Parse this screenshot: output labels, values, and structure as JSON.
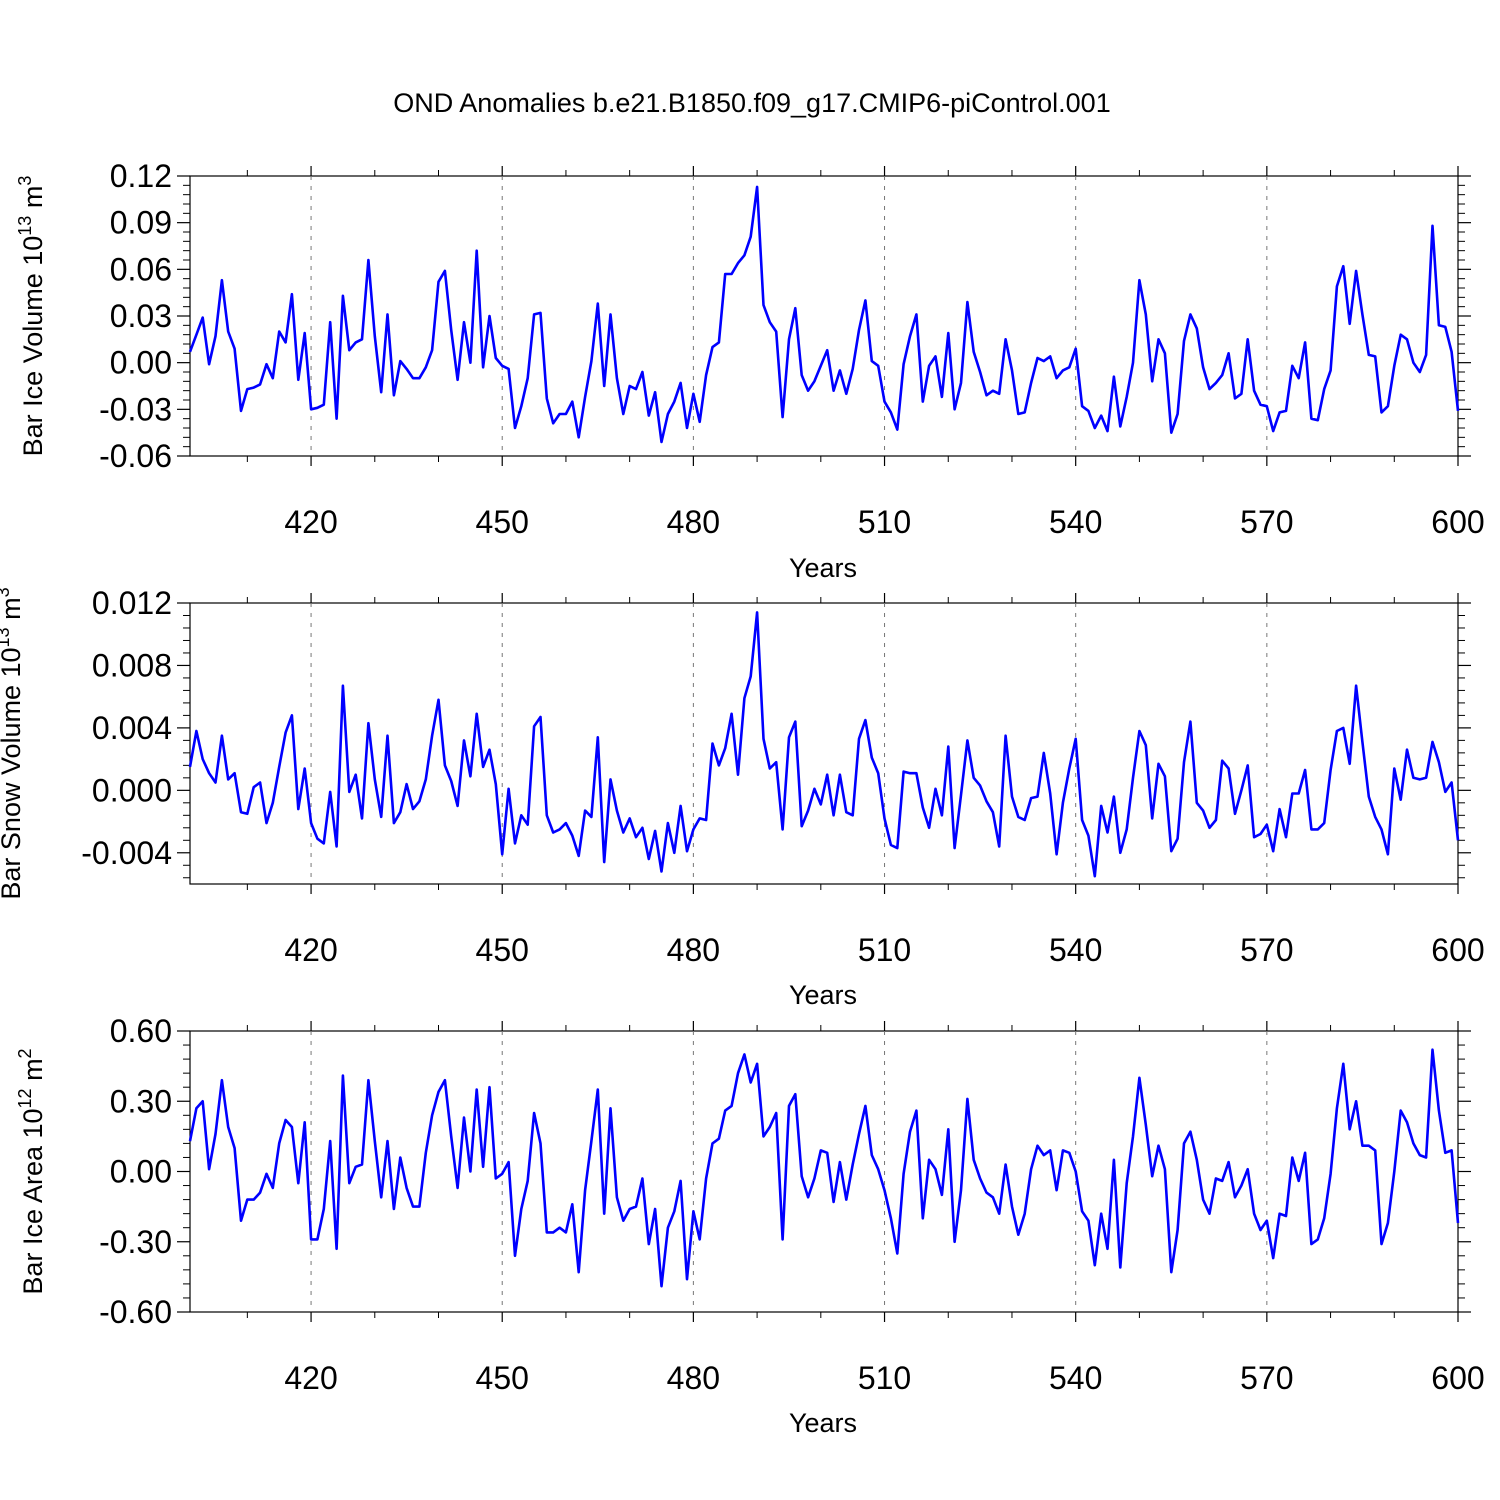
{
  "title": "OND Anomalies b.e21.B1850.f09_g17.CMIP6-piControl.001",
  "line_color": "#0000ff",
  "chart_data": [
    {
      "type": "line",
      "ylabel_main": "Bar Ice Volume 10",
      "ylabel_exp": "13",
      "ylabel_unit": " m",
      "ylabel_unit_exp": "3",
      "xlabel": "Years",
      "xlim": [
        401,
        600
      ],
      "ylim": [
        -0.06,
        0.12
      ],
      "x_ticks": [
        420,
        450,
        480,
        510,
        540,
        570,
        600
      ],
      "y_ticks": [
        -0.06,
        -0.03,
        0.0,
        0.03,
        0.06,
        0.09,
        0.12
      ],
      "y_tick_labels": [
        "-0.06",
        "-0.03",
        "0.00",
        "0.03",
        "0.06",
        "0.09",
        "0.12"
      ],
      "series": [
        {
          "start_year": 401,
          "values": [
            0.007,
            0.018,
            0.029,
            -0.001,
            0.017,
            0.053,
            0.02,
            0.009,
            -0.031,
            -0.017,
            -0.016,
            -0.014,
            -0.001,
            -0.01,
            0.02,
            0.013,
            0.044,
            -0.011,
            0.019,
            -0.03,
            -0.029,
            -0.027,
            0.026,
            -0.036,
            0.043,
            0.008,
            0.013,
            0.015,
            0.066,
            0.017,
            -0.019,
            0.031,
            -0.021,
            0.001,
            -0.004,
            -0.01,
            -0.01,
            -0.003,
            0.008,
            0.052,
            0.059,
            0.021,
            -0.011,
            0.026,
            0.0,
            0.072,
            -0.003,
            0.03,
            0.003,
            -0.002,
            -0.004,
            -0.042,
            -0.028,
            -0.01,
            0.031,
            0.032,
            -0.023,
            -0.039,
            -0.033,
            -0.033,
            -0.025,
            -0.048,
            -0.022,
            0.001,
            0.038,
            -0.015,
            0.031,
            -0.01,
            -0.033,
            -0.015,
            -0.017,
            -0.006,
            -0.034,
            -0.019,
            -0.051,
            -0.033,
            -0.025,
            -0.013,
            -0.042,
            -0.02,
            -0.038,
            -0.008,
            0.01,
            0.013,
            0.057,
            0.057,
            0.064,
            0.069,
            0.081,
            0.113,
            0.037,
            0.026,
            0.02,
            -0.035,
            0.015,
            0.035,
            -0.008,
            -0.018,
            -0.012,
            -0.002,
            0.008,
            -0.018,
            -0.005,
            -0.02,
            -0.004,
            0.021,
            0.04,
            0.001,
            -0.002,
            -0.025,
            -0.032,
            -0.043,
            -0.001,
            0.017,
            0.031,
            -0.025,
            -0.002,
            0.004,
            -0.022,
            0.019,
            -0.03,
            -0.013,
            0.039,
            0.007,
            -0.006,
            -0.021,
            -0.018,
            -0.02,
            0.015,
            -0.005,
            -0.033,
            -0.032,
            -0.013,
            0.003,
            0.001,
            0.004,
            -0.01,
            -0.005,
            -0.003,
            0.009,
            -0.028,
            -0.031,
            -0.042,
            -0.034,
            -0.044,
            -0.009,
            -0.041,
            -0.022,
            0.0,
            0.053,
            0.031,
            -0.012,
            0.015,
            0.006,
            -0.045,
            -0.033,
            0.014,
            0.031,
            0.022,
            -0.003,
            -0.017,
            -0.013,
            -0.008,
            0.006,
            -0.023,
            -0.02,
            0.015,
            -0.018,
            -0.027,
            -0.028,
            -0.044,
            -0.032,
            -0.031,
            -0.002,
            -0.01,
            0.013,
            -0.036,
            -0.037,
            -0.017,
            -0.005,
            0.049,
            0.062,
            0.025,
            0.059,
            0.031,
            0.005,
            0.004,
            -0.032,
            -0.028,
            -0.002,
            0.018,
            0.015,
            0.0,
            -0.006,
            0.005,
            0.088,
            0.024,
            0.023,
            0.007,
            -0.031
          ]
        }
      ]
    },
    {
      "type": "line",
      "ylabel_main": "Bar Snow Volume 10",
      "ylabel_exp": "13",
      "ylabel_unit": " m",
      "ylabel_unit_exp": "3",
      "xlabel": "Years",
      "xlim": [
        401,
        600
      ],
      "ylim": [
        -0.006,
        0.012
      ],
      "x_ticks": [
        420,
        450,
        480,
        510,
        540,
        570,
        600
      ],
      "y_ticks": [
        -0.004,
        0.0,
        0.004,
        0.008,
        0.012
      ],
      "y_tick_labels": [
        "-0.004",
        "0.000",
        "0.004",
        "0.008",
        "0.012"
      ],
      "series": [
        {
          "start_year": 401,
          "values": [
            0.0015,
            0.0038,
            0.002,
            0.0011,
            0.0005,
            0.0035,
            0.0007,
            0.0011,
            -0.0014,
            -0.0015,
            0.0002,
            0.0005,
            -0.0021,
            -0.0008,
            0.0015,
            0.0037,
            0.0048,
            -0.0012,
            0.0014,
            -0.0021,
            -0.0031,
            -0.0034,
            -0.0001,
            -0.0036,
            0.0067,
            -0.0001,
            0.001,
            -0.0018,
            0.0043,
            0.0007,
            -0.0017,
            0.0035,
            -0.0021,
            -0.0014,
            0.0004,
            -0.0012,
            -0.0007,
            0.0007,
            0.0035,
            0.0058,
            0.0016,
            0.0006,
            -0.001,
            0.0032,
            0.0009,
            0.0049,
            0.0015,
            0.0026,
            0.0004,
            -0.0041,
            0.0001,
            -0.0034,
            -0.0016,
            -0.0022,
            0.0041,
            0.0047,
            -0.0016,
            -0.0027,
            -0.0025,
            -0.0021,
            -0.0029,
            -0.0042,
            -0.0013,
            -0.0017,
            0.0034,
            -0.0046,
            0.0007,
            -0.0013,
            -0.0027,
            -0.0018,
            -0.003,
            -0.0024,
            -0.0044,
            -0.0026,
            -0.0052,
            -0.0021,
            -0.004,
            -0.001,
            -0.0039,
            -0.0025,
            -0.0018,
            -0.0019,
            0.003,
            0.0016,
            0.0027,
            0.0049,
            0.001,
            0.0059,
            0.0073,
            0.0114,
            0.0033,
            0.0014,
            0.0018,
            -0.0025,
            0.0034,
            0.0044,
            -0.0023,
            -0.0013,
            0.0001,
            -0.0009,
            0.001,
            -0.0016,
            0.001,
            -0.0014,
            -0.0016,
            0.0033,
            0.0045,
            0.0021,
            0.0011,
            -0.0018,
            -0.0035,
            -0.0037,
            0.0012,
            0.0011,
            0.0011,
            -0.0011,
            -0.0024,
            0.0001,
            -0.0016,
            0.0028,
            -0.0037,
            -0.0003,
            0.0032,
            0.0008,
            0.0003,
            -0.0007,
            -0.0014,
            -0.0036,
            0.0035,
            -0.0004,
            -0.0017,
            -0.0019,
            -0.0005,
            -0.0004,
            0.0024,
            -0.0002,
            -0.0041,
            -0.0008,
            0.0014,
            0.0033,
            -0.0019,
            -0.0029,
            -0.0055,
            -0.001,
            -0.0027,
            -0.0004,
            -0.004,
            -0.0025,
            0.0008,
            0.0038,
            0.0029,
            -0.0018,
            0.0017,
            0.0009,
            -0.0039,
            -0.0031,
            0.0018,
            0.0044,
            -0.0008,
            -0.0013,
            -0.0024,
            -0.0019,
            0.0019,
            0.0014,
            -0.0015,
            0.0,
            0.0016,
            -0.003,
            -0.0028,
            -0.0022,
            -0.0039,
            -0.0012,
            -0.003,
            -0.0002,
            -0.0002,
            0.0013,
            -0.0025,
            -0.0025,
            -0.0021,
            0.0013,
            0.0038,
            0.004,
            0.0017,
            0.0067,
            0.0031,
            -0.0004,
            -0.0017,
            -0.0025,
            -0.0041,
            0.0014,
            -0.0006,
            0.0026,
            0.0008,
            0.0007,
            0.0008,
            0.0031,
            0.0018,
            -0.0001,
            0.0005,
            -0.0032
          ]
        }
      ]
    },
    {
      "type": "line",
      "ylabel_main": "Bar Ice Area 10",
      "ylabel_exp": "12",
      "ylabel_unit": " m",
      "ylabel_unit_exp": "2",
      "xlabel": "Years",
      "xlim": [
        401,
        600
      ],
      "ylim": [
        -0.6,
        0.6
      ],
      "x_ticks": [
        420,
        450,
        480,
        510,
        540,
        570,
        600
      ],
      "y_ticks": [
        -0.6,
        -0.3,
        0.0,
        0.3,
        0.6
      ],
      "y_tick_labels": [
        "-0.60",
        "-0.30",
        "0.00",
        "0.30",
        "0.60"
      ],
      "series": [
        {
          "start_year": 401,
          "values": [
            0.13,
            0.27,
            0.3,
            0.01,
            0.16,
            0.39,
            0.19,
            0.1,
            -0.21,
            -0.12,
            -0.12,
            -0.09,
            -0.01,
            -0.07,
            0.12,
            0.22,
            0.19,
            -0.05,
            0.21,
            -0.29,
            -0.29,
            -0.16,
            0.13,
            -0.33,
            0.41,
            -0.05,
            0.02,
            0.03,
            0.39,
            0.13,
            -0.11,
            0.13,
            -0.16,
            0.06,
            -0.07,
            -0.15,
            -0.15,
            0.08,
            0.24,
            0.34,
            0.39,
            0.15,
            -0.07,
            0.23,
            0.0,
            0.35,
            0.02,
            0.36,
            -0.03,
            -0.01,
            0.04,
            -0.36,
            -0.16,
            -0.04,
            0.25,
            0.12,
            -0.26,
            -0.26,
            -0.24,
            -0.26,
            -0.14,
            -0.43,
            -0.08,
            0.13,
            0.35,
            -0.18,
            0.27,
            -0.11,
            -0.21,
            -0.16,
            -0.15,
            -0.03,
            -0.31,
            -0.16,
            -0.49,
            -0.24,
            -0.17,
            -0.04,
            -0.46,
            -0.17,
            -0.29,
            -0.03,
            0.12,
            0.14,
            0.26,
            0.28,
            0.42,
            0.5,
            0.38,
            0.46,
            0.15,
            0.19,
            0.25,
            -0.29,
            0.28,
            0.33,
            -0.02,
            -0.11,
            -0.03,
            0.09,
            0.08,
            -0.13,
            0.04,
            -0.12,
            0.03,
            0.16,
            0.28,
            0.07,
            0.01,
            -0.08,
            -0.2,
            -0.35,
            -0.01,
            0.17,
            0.26,
            -0.2,
            0.05,
            0.01,
            -0.1,
            0.18,
            -0.3,
            -0.08,
            0.31,
            0.05,
            -0.03,
            -0.09,
            -0.11,
            -0.18,
            0.03,
            -0.15,
            -0.27,
            -0.18,
            0.01,
            0.11,
            0.07,
            0.09,
            -0.08,
            0.09,
            0.08,
            0.0,
            -0.17,
            -0.21,
            -0.4,
            -0.18,
            -0.33,
            0.05,
            -0.41,
            -0.05,
            0.15,
            0.4,
            0.2,
            -0.02,
            0.11,
            0.01,
            -0.43,
            -0.25,
            0.12,
            0.17,
            0.05,
            -0.12,
            -0.18,
            -0.03,
            -0.04,
            0.04,
            -0.11,
            -0.06,
            0.01,
            -0.18,
            -0.25,
            -0.21,
            -0.37,
            -0.18,
            -0.19,
            0.06,
            -0.04,
            0.08,
            -0.31,
            -0.29,
            -0.2,
            -0.01,
            0.27,
            0.46,
            0.18,
            0.3,
            0.11,
            0.11,
            0.09,
            -0.31,
            -0.22,
            0.0,
            0.26,
            0.21,
            0.12,
            0.07,
            0.06,
            0.52,
            0.26,
            0.08,
            0.09,
            -0.22
          ]
        }
      ]
    }
  ]
}
